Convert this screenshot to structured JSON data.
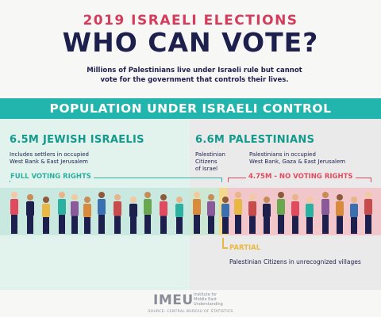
{
  "header": {
    "kicker": "2019 ISRAELI ELECTIONS",
    "headline": "WHO CAN VOTE?",
    "lede_line1": "Millions of Palestinians live under Israeli rule but cannot",
    "lede_line2": "vote for the government that controls their lives."
  },
  "panel": {
    "title": "POPULATION UNDER ISRAELI CONTROL",
    "left": {
      "title": "6.5M JEWISH ISRAELIS",
      "note_line1": "Includes settlers in occupied",
      "note_line2": "West Bank & East Jerusalem",
      "voting_label": "FULL VOTING RIGHTS"
    },
    "right": {
      "title": "6.6M PALESTINIANS",
      "citizens_line1": "Palestinian",
      "citizens_line2": "Citizens",
      "citizens_line3": "of Israel",
      "occupied_line1": "Palestinians in occupied",
      "occupied_line2": "West Bank, Gaza & East Jerusalem",
      "no_voting_label": "4.75M - NO VOTING RIGHTS",
      "partial_label": "PARTIAL",
      "partial_note": "Palestinian Citizens in unrecognized villages"
    },
    "colors": {
      "teal": "#22b5ad",
      "red": "#e24a5d",
      "yellow": "#e9b844",
      "navy": "#1d1f4d"
    }
  },
  "footer": {
    "logo": "IMEU",
    "logo_sub_line1": "Institute for",
    "logo_sub_line2": "Middle East",
    "logo_sub_line3": "Understanding",
    "source": "SOURCE: CENTRAL BUREAU OF STATISTICS"
  }
}
